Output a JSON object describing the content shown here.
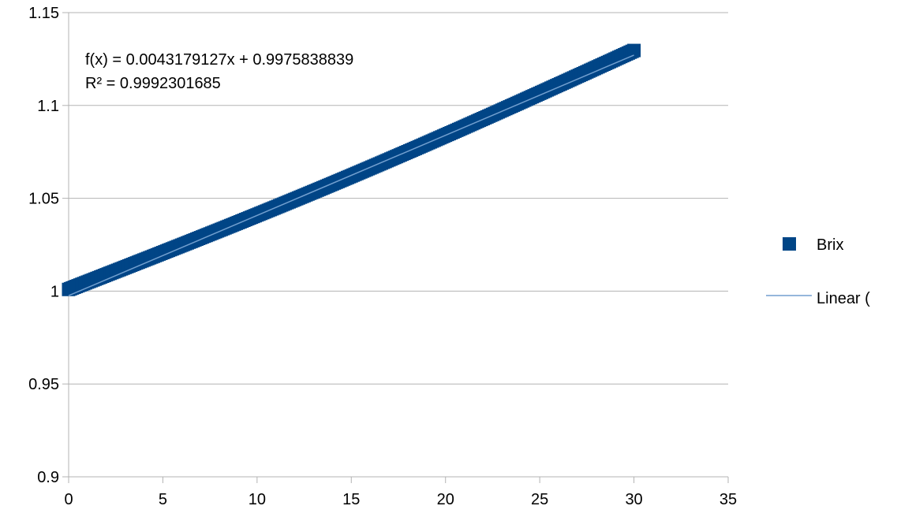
{
  "chart_data": {
    "type": "scatter",
    "title": "",
    "xlabel": "",
    "ylabel": "",
    "xlim": [
      0,
      35
    ],
    "ylim": [
      0.9,
      1.15
    ],
    "x_ticks": [
      "0",
      "5",
      "10",
      "15",
      "20",
      "25",
      "30",
      "35"
    ],
    "y_ticks": [
      "0.9",
      "0.95",
      "1",
      "1.05",
      "1.1",
      "1.15"
    ],
    "grid": "horizontal",
    "legend_position": "right",
    "series": [
      {
        "name": "Brix",
        "color": "#004586",
        "marker": "square",
        "x_start": 0,
        "x_end": 30,
        "x_step": 0.1,
        "y_at_x0": 1.0009,
        "y_at_x30": 1.1296
      }
    ],
    "trendline": {
      "name": "Linear (",
      "type": "linear",
      "color": "#729fcf",
      "slope": 0.0043179127,
      "intercept": 0.9975838839
    },
    "annotations": {
      "equation": "f(x) = 0.0043179127x + 0.9975838839",
      "r_squared": "R² = 0.9992301685"
    }
  }
}
